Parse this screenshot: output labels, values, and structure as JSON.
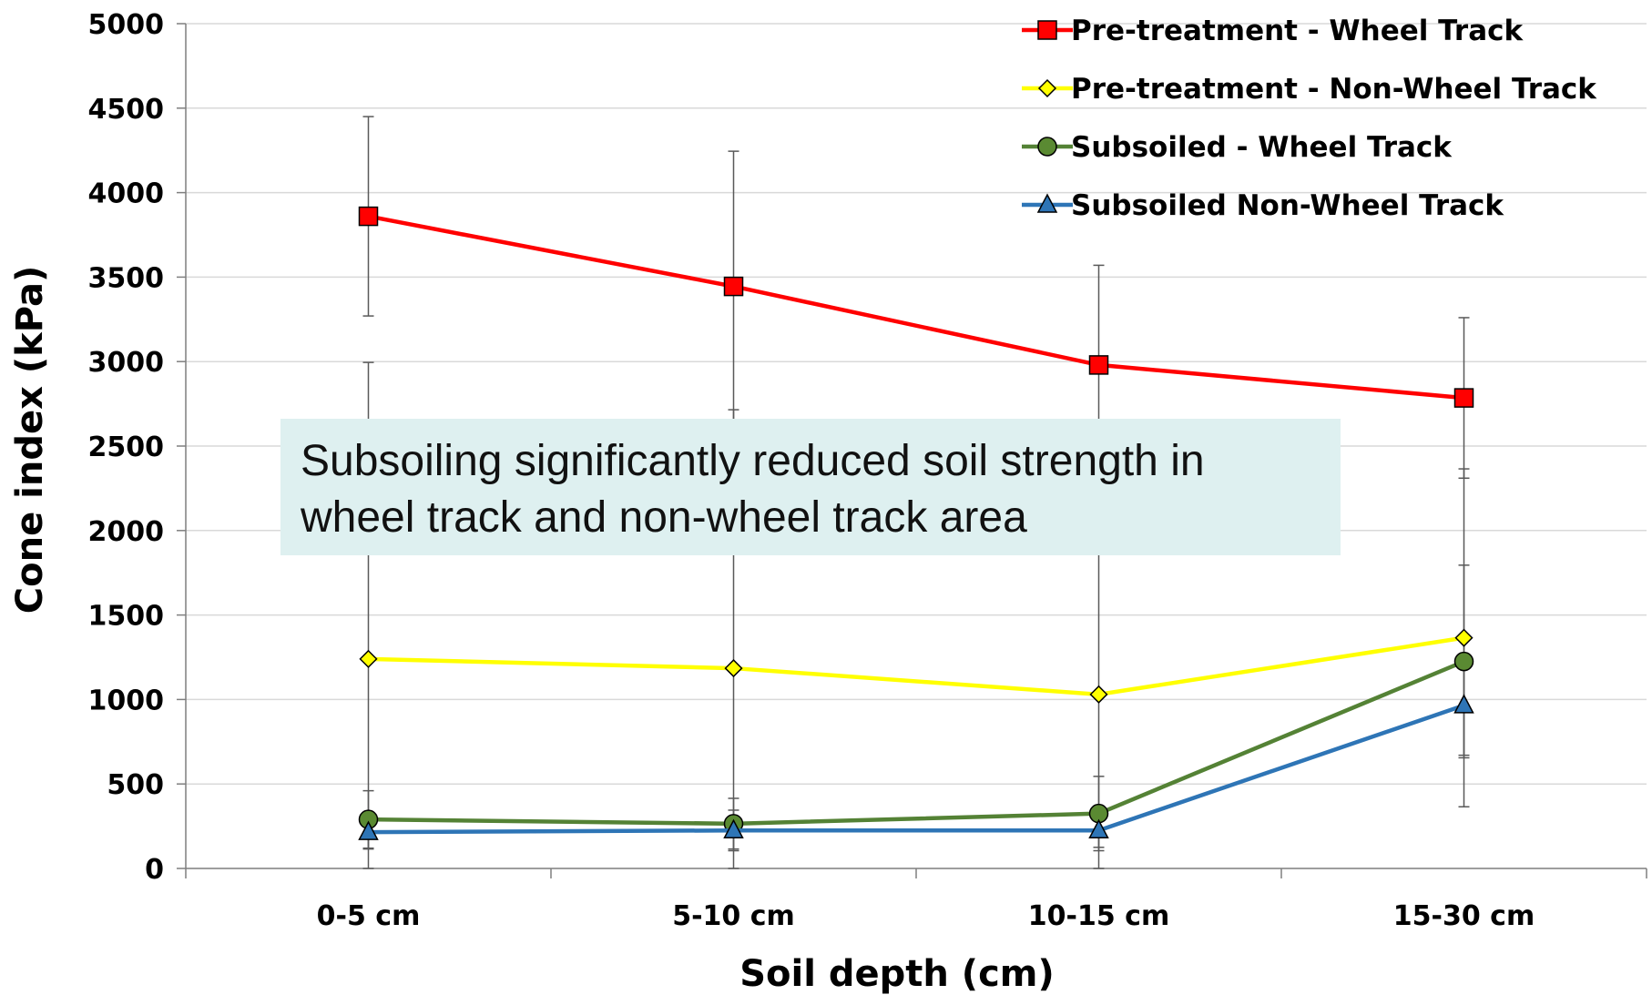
{
  "chart_data": {
    "type": "line",
    "title": "",
    "xlabel": "Soil depth (cm)",
    "ylabel": "Cone index (kPa)",
    "categories": [
      "0-5 cm",
      "5-10 cm",
      "10-15 cm",
      "15-30 cm"
    ],
    "ylim": [
      0,
      5000
    ],
    "yticks": [
      0,
      500,
      1000,
      1500,
      2000,
      2500,
      3000,
      3500,
      4000,
      4500,
      5000
    ],
    "grid": "horizontal",
    "legend_position": "top-right",
    "series": [
      {
        "name": "Pre-treatment - Wheel Track",
        "color": "#ff0000",
        "marker": "square",
        "marker_fill": "#ff0000",
        "values": [
          3860,
          3445,
          2980,
          2785
        ],
        "error": [
          590,
          800,
          590,
          475
        ]
      },
      {
        "name": "Pre-treatment - Non-Wheel Track",
        "color": "#ffff00",
        "marker": "diamond",
        "marker_fill": "#ffff00",
        "values": [
          1240,
          1185,
          1030,
          1365
        ],
        "error": [
          1755,
          1530,
          1600,
          1000
        ]
      },
      {
        "name": "Subsoiled - Wheel Track",
        "color": "#548235",
        "marker": "circle",
        "marker_fill": "#5a8a32",
        "values": [
          290,
          265,
          325,
          1225
        ],
        "error": [
          170,
          150,
          220,
          570
        ]
      },
      {
        "name": "Subsoiled Non-Wheel Track",
        "color": "#2e75b6",
        "marker": "triangle",
        "marker_fill": "#2e75b6",
        "values": [
          215,
          225,
          225,
          965
        ],
        "error": [
          100,
          120,
          100,
          295
        ]
      }
    ],
    "annotation": "Subsoiling significantly reduced soil strength in wheel track and non-wheel track area"
  }
}
